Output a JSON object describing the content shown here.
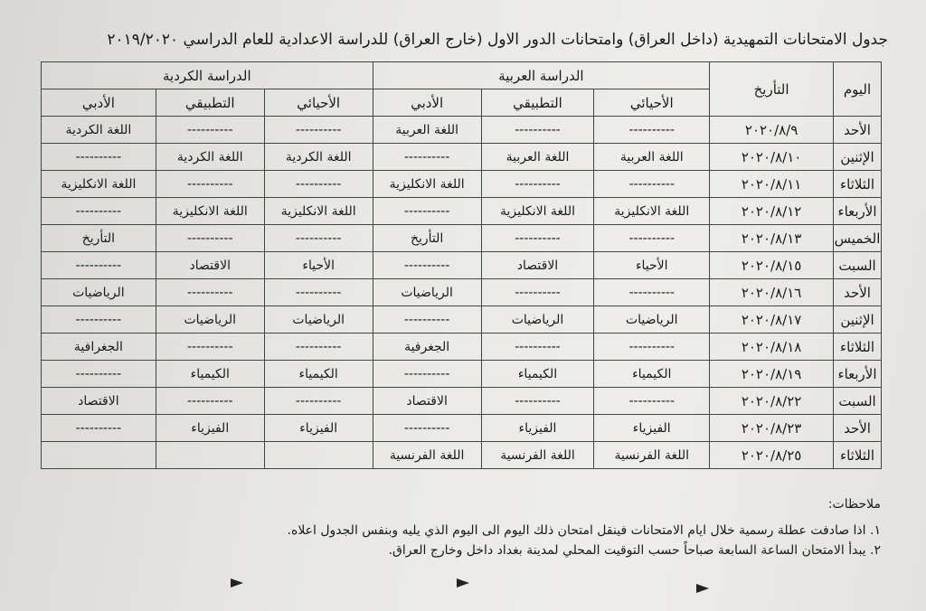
{
  "title": "جدول الامتحانات التمهيدية (داخل العراق) وامتحانات الدور الاول (خارج العراق) للدراسة الاعدادية للعام الدراسي ٢٠١٩/٢٠٢٠",
  "headers": {
    "day": "اليوم",
    "date": "التأريخ",
    "arabic_group": "الدراسة العربية",
    "kurdish_group": "الدراسة الكردية",
    "sub": [
      "الأحيائي",
      "التطبيقي",
      "الأدبي",
      "الأحيائي",
      "التطبيقي",
      "الأدبي"
    ]
  },
  "rows": [
    {
      "day": "الأحد",
      "date": "٢٠٢٠/٨/٩",
      "cells": [
        "----------",
        "----------",
        "اللغة العربية",
        "----------",
        "----------",
        "اللغة الكردية"
      ]
    },
    {
      "day": "الإثنين",
      "date": "٢٠٢٠/٨/١٠",
      "cells": [
        "اللغة العربية",
        "اللغة العربية",
        "----------",
        "اللغة الكردية",
        "اللغة الكردية",
        "----------"
      ]
    },
    {
      "day": "الثلاثاء",
      "date": "٢٠٢٠/٨/١١",
      "cells": [
        "----------",
        "----------",
        "اللغة الانكليزية",
        "----------",
        "----------",
        "اللغة الانكليزية"
      ]
    },
    {
      "day": "الأربعاء",
      "date": "٢٠٢٠/٨/١٢",
      "cells": [
        "اللغة الانكليزية",
        "اللغة الانكليزية",
        "----------",
        "اللغة الانكليزية",
        "اللغة الانكليزية",
        "----------"
      ]
    },
    {
      "day": "الخميس",
      "date": "٢٠٢٠/٨/١٣",
      "cells": [
        "----------",
        "----------",
        "التأريخ",
        "----------",
        "----------",
        "التأريخ"
      ]
    },
    {
      "day": "السبت",
      "date": "٢٠٢٠/٨/١٥",
      "cells": [
        "الأحياء",
        "الاقتصاد",
        "----------",
        "الأحياء",
        "الاقتصاد",
        "----------"
      ]
    },
    {
      "day": "الأحد",
      "date": "٢٠٢٠/٨/١٦",
      "cells": [
        "----------",
        "----------",
        "الرياضيات",
        "----------",
        "----------",
        "الرياضيات"
      ]
    },
    {
      "day": "الإثنين",
      "date": "٢٠٢٠/٨/١٧",
      "cells": [
        "الرياضيات",
        "الرياضيات",
        "----------",
        "الرياضيات",
        "الرياضيات",
        "----------"
      ]
    },
    {
      "day": "الثلاثاء",
      "date": "٢٠٢٠/٨/١٨",
      "cells": [
        "----------",
        "----------",
        "الجغرفية",
        "----------",
        "----------",
        "الجغرافية"
      ]
    },
    {
      "day": "الأربعاء",
      "date": "٢٠٢٠/٨/١٩",
      "cells": [
        "الكيمياء",
        "الكيمياء",
        "----------",
        "الكيمياء",
        "الكيمياء",
        "----------"
      ]
    },
    {
      "day": "السبت",
      "date": "٢٠٢٠/٨/٢٢",
      "cells": [
        "----------",
        "----------",
        "الاقتصاد",
        "----------",
        "----------",
        "الاقتصاد"
      ]
    },
    {
      "day": "الأحد",
      "date": "٢٠٢٠/٨/٢٣",
      "cells": [
        "الفيزياء",
        "الفيزياء",
        "----------",
        "الفيزياء",
        "الفيزياء",
        "----------"
      ]
    },
    {
      "day": "الثلاثاء",
      "date": "٢٠٢٠/٨/٢٥",
      "cells": [
        "اللغة الفرنسية",
        "اللغة الفرنسية",
        "اللغة الفرنسية",
        "",
        "",
        ""
      ]
    }
  ],
  "notes": {
    "title": "ملاحظات:",
    "items": [
      "١. اذا صادفت عطلة رسمية خلال ايام الامتحانات فينقل امتحان ذلك اليوم الى اليوم الذي يليه وبنفس الجدول اعلاه.",
      "٢. يبدأ الامتحان الساعة السابعة صباحاً حسب التوقيت المحلي لمدينة بغداد داخل وخارج العراق."
    ]
  }
}
